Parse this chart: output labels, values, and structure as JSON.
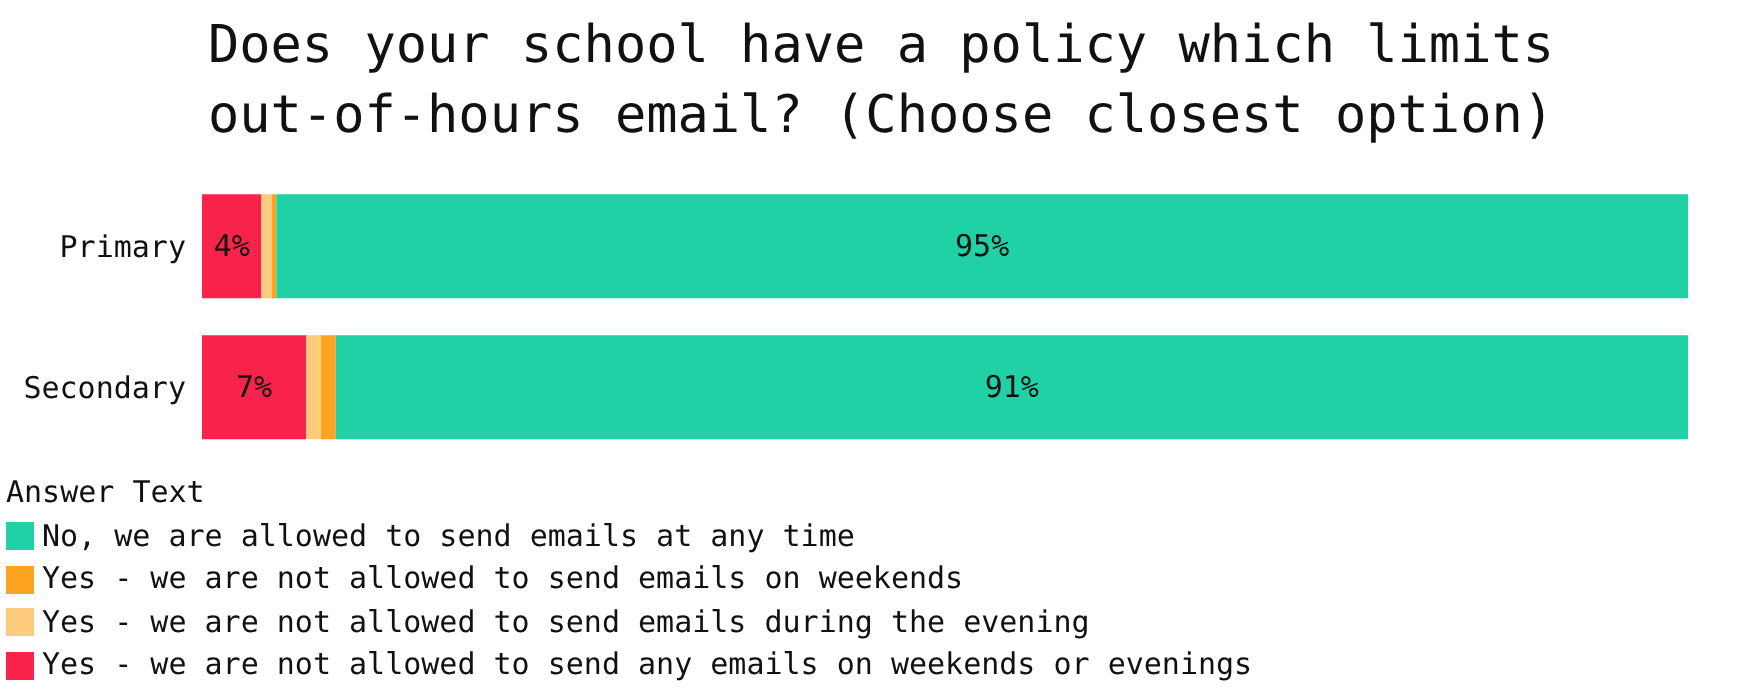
{
  "chart_data": {
    "type": "bar",
    "orientation": "horizontal",
    "stacked": true,
    "title": "Does your school have a policy which limits out-of-hours email? (Choose closest option)",
    "legend_title": "Answer Text",
    "categories": [
      "Primary",
      "Secondary"
    ],
    "series": [
      {
        "name": "Yes - we are not allowed to send any emails on weekends or evenings",
        "color": "#f7234a",
        "values": [
          4,
          7
        ],
        "value_labels": [
          "4%",
          "7%"
        ]
      },
      {
        "name": "Yes - we are not allowed to send emails during the evening",
        "color": "#fdcb7c",
        "values": [
          0.7,
          1
        ],
        "value_labels": [
          null,
          null
        ]
      },
      {
        "name": "Yes - we are not allowed to send emails on weekends",
        "color": "#fca421",
        "values": [
          0.3,
          1
        ],
        "value_labels": [
          null,
          null
        ]
      },
      {
        "name": "No, we are allowed to send emails at any time",
        "color": "#1fd1a5",
        "values": [
          95,
          91
        ],
        "value_labels": [
          "95%",
          "91%"
        ]
      }
    ],
    "tick_labels": "y",
    "legend": "bottom"
  }
}
